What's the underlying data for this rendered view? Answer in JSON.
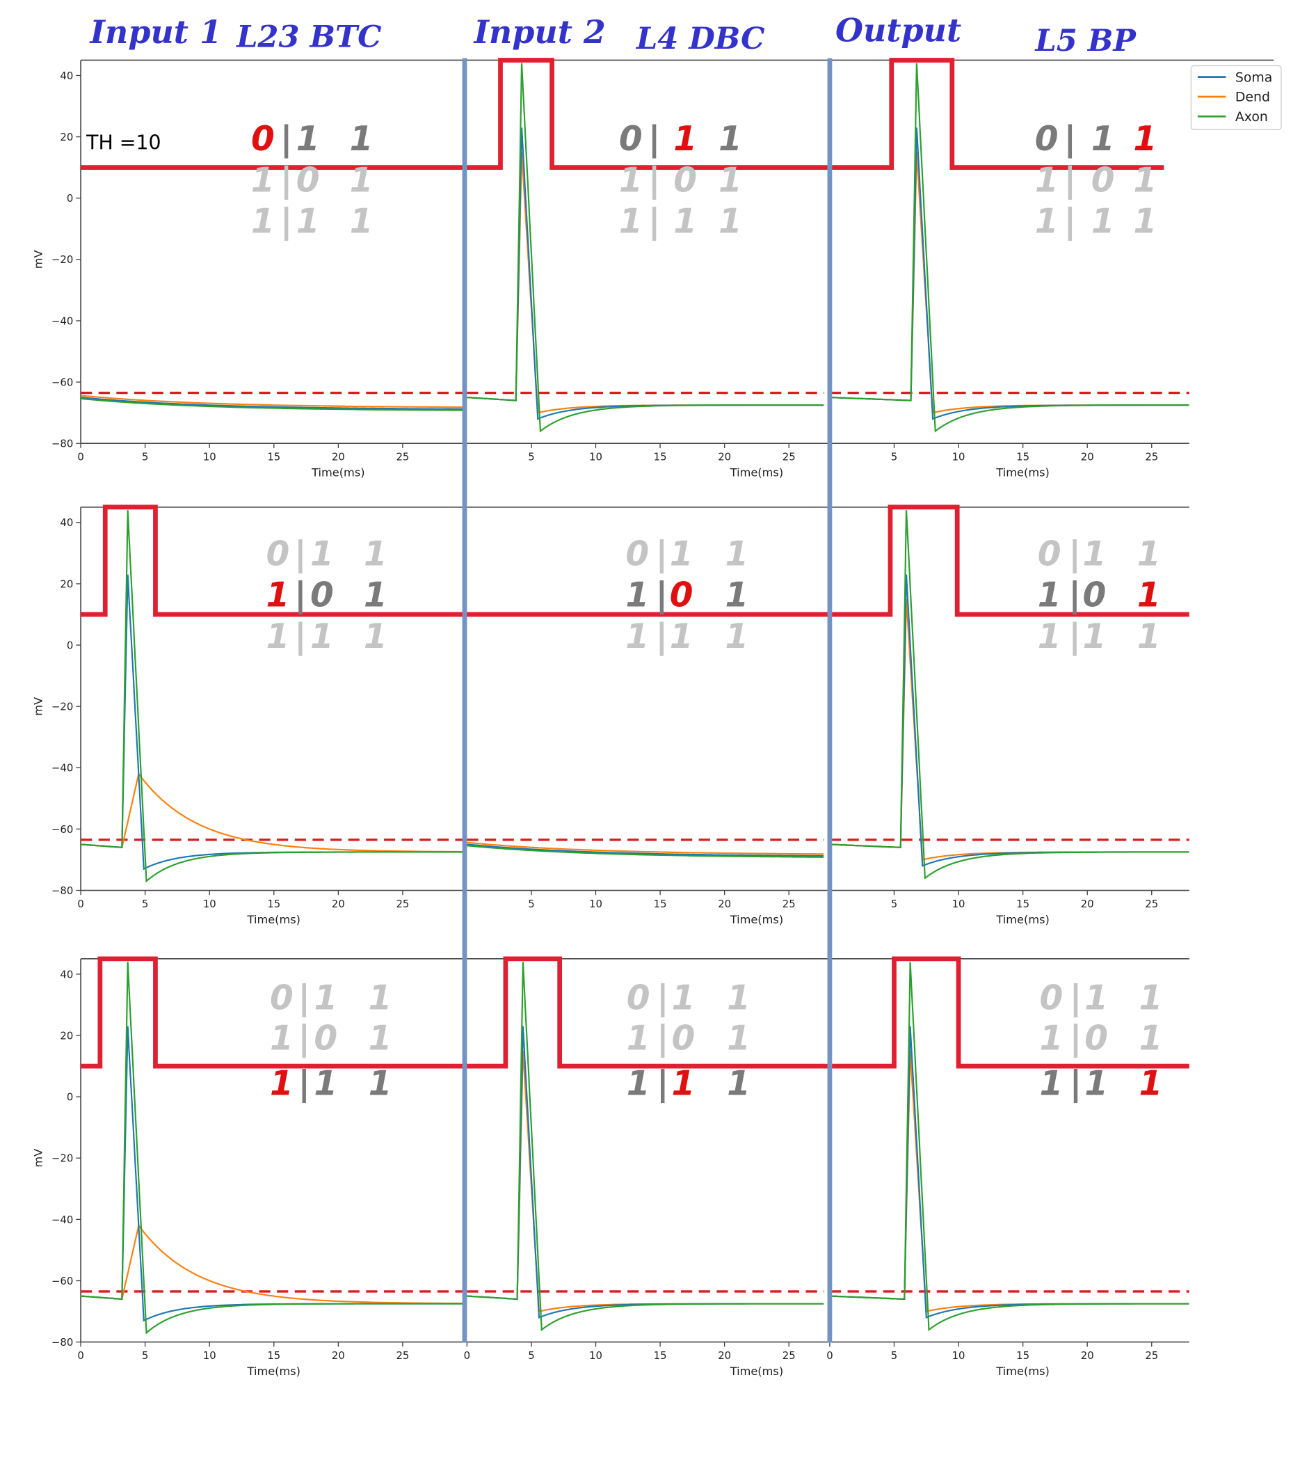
{
  "headers": [
    {
      "label": "Input 1"
    },
    {
      "label": "L23 BTC"
    },
    {
      "label": "Input 2"
    },
    {
      "label": "L4 DBC"
    },
    {
      "label": "Output"
    },
    {
      "label": "L5 BP"
    }
  ],
  "threshold_label": "TH =10",
  "legend": [
    {
      "label": "Soma",
      "color": "#1f77b4"
    },
    {
      "label": "Dend",
      "color": "#ff7f0e"
    },
    {
      "label": "Axon",
      "color": "#2ca02c"
    }
  ],
  "truth_table_rows": [
    [
      "0",
      "|",
      "1",
      "1"
    ],
    [
      "1",
      "|",
      "0",
      "1"
    ],
    [
      "1",
      "|",
      "1",
      "1"
    ]
  ],
  "colors": {
    "highlight": "#e01010",
    "active": "#7a7a7a",
    "inactive": "#c4c4c4",
    "signal": "#e02030",
    "separator": "#7393c4",
    "threshold_line": "#d42020"
  },
  "chart_data": {
    "type": "line",
    "layout": "3x3 grid",
    "xlabel": "Time(ms)",
    "ylabel": "mV",
    "ylim": [
      -80,
      45
    ],
    "yticks": [
      40,
      20,
      0,
      -20,
      -40,
      -60,
      -80
    ],
    "xticks": [
      0,
      5,
      10,
      15,
      20,
      25
    ],
    "threshold_mV": -63.5,
    "signal_levels_mV": {
      "low": 10,
      "high": 45
    },
    "series_names": [
      "Soma",
      "Dend",
      "Axon"
    ],
    "rows": [
      {
        "highlight_row": 0,
        "panels": [
          {
            "spike_ms": null,
            "pulse_ms": null,
            "red_col": 0,
            "dend_slow": false
          },
          {
            "spike_ms": 3.8,
            "pulse_ms": [
              2.6,
              6.6
            ],
            "red_col": 2,
            "dend_slow": false
          },
          {
            "spike_ms": 6.3,
            "pulse_ms": [
              4.8,
              9.5
            ],
            "red_col": 3,
            "dend_slow": false
          }
        ]
      },
      {
        "highlight_row": 1,
        "panels": [
          {
            "spike_ms": 3.2,
            "pulse_ms": [
              1.9,
              5.8
            ],
            "red_col": 0,
            "dend_slow": true
          },
          {
            "spike_ms": null,
            "pulse_ms": null,
            "red_col": 2,
            "dend_slow": false
          },
          {
            "spike_ms": 5.5,
            "pulse_ms": [
              4.7,
              9.9
            ],
            "red_col": 3,
            "dend_slow": false
          }
        ]
      },
      {
        "highlight_row": 2,
        "panels": [
          {
            "spike_ms": 3.2,
            "pulse_ms": [
              1.5,
              5.8
            ],
            "red_col": 0,
            "dend_slow": true
          },
          {
            "spike_ms": 3.9,
            "pulse_ms": [
              3.0,
              7.2
            ],
            "red_col": 2,
            "dend_slow": false
          },
          {
            "spike_ms": 5.8,
            "pulse_ms": [
              5.0,
              10.0
            ],
            "red_col": 3,
            "dend_slow": false
          }
        ]
      }
    ]
  }
}
